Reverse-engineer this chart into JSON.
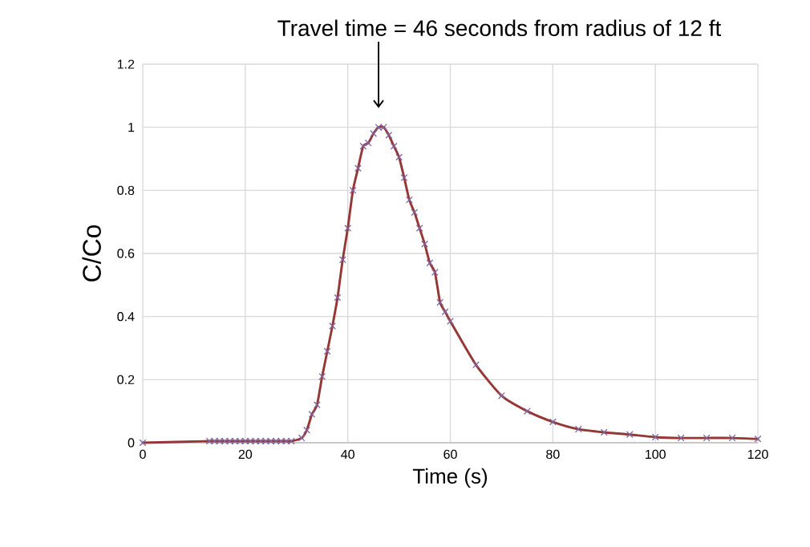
{
  "chart_data": {
    "type": "line",
    "xlabel": "Time (s)",
    "ylabel": "C/Co",
    "annotations": [
      "Travel time = 46 seconds from radius  of 12 ft"
    ],
    "x": [
      0,
      13,
      14,
      15,
      16,
      17,
      18,
      19,
      20,
      21,
      22,
      23,
      24,
      25,
      26,
      27,
      28,
      29,
      31,
      32,
      33,
      34,
      35,
      36,
      37,
      38,
      39,
      40,
      41,
      42,
      43,
      44,
      45,
      46,
      47,
      48,
      49,
      50,
      51,
      52,
      53,
      54,
      55,
      56,
      57,
      58,
      59,
      60,
      65,
      70,
      75,
      80,
      85,
      90,
      95,
      100,
      105,
      110,
      115,
      120
    ],
    "series": [
      {
        "color": "#953735",
        "marker": "none",
        "values": [
          0,
          0.005,
          0.005,
          0.005,
          0.005,
          0.005,
          0.005,
          0.005,
          0.005,
          0.005,
          0.005,
          0.005,
          0.005,
          0.005,
          0.005,
          0.005,
          0.005,
          0.005,
          0.015,
          0.04,
          0.09,
          0.12,
          0.21,
          0.29,
          0.37,
          0.46,
          0.58,
          0.68,
          0.8,
          0.87,
          0.94,
          0.95,
          0.98,
          1.0,
          1.0,
          0.975,
          0.94,
          0.905,
          0.84,
          0.77,
          0.73,
          0.68,
          0.63,
          0.57,
          0.54,
          0.445,
          0.415,
          0.385,
          0.247,
          0.149,
          0.1,
          0.066,
          0.043,
          0.033,
          0.026,
          0.018,
          0.015,
          0.015,
          0.015,
          0.012
        ]
      },
      {
        "type": "scatter",
        "color": "#8064a2",
        "marker": "cross",
        "values": [
          0,
          0.005,
          0.005,
          0.005,
          0.005,
          0.005,
          0.005,
          0.005,
          0.005,
          0.005,
          0.005,
          0.005,
          0.005,
          0.005,
          0.005,
          0.005,
          0.005,
          0.005,
          0.015,
          0.04,
          0.09,
          0.12,
          0.21,
          0.29,
          0.37,
          0.46,
          0.58,
          0.68,
          0.8,
          0.87,
          0.94,
          0.95,
          0.98,
          1.0,
          1.0,
          0.975,
          0.94,
          0.905,
          0.84,
          0.77,
          0.73,
          0.68,
          0.63,
          0.57,
          0.54,
          0.445,
          0.415,
          0.385,
          0.247,
          0.149,
          0.1,
          0.066,
          0.043,
          0.033,
          0.026,
          0.018,
          0.015,
          0.015,
          0.015,
          0.012
        ]
      }
    ],
    "xlim": [
      0,
      120
    ],
    "xticks": [
      0,
      20,
      40,
      60,
      80,
      100,
      120
    ],
    "ylim": [
      0,
      1.2
    ],
    "yticks": [
      0,
      {
        "value": 0.2,
        "label": "0.2"
      },
      {
        "value": 0.4,
        "label": "0.4"
      },
      {
        "value": 0.6,
        "label": "0.6"
      },
      {
        "value": 0.8,
        "label": "0.8"
      },
      1,
      {
        "value": 1.2,
        "label": "1.2"
      }
    ],
    "grid": true
  }
}
